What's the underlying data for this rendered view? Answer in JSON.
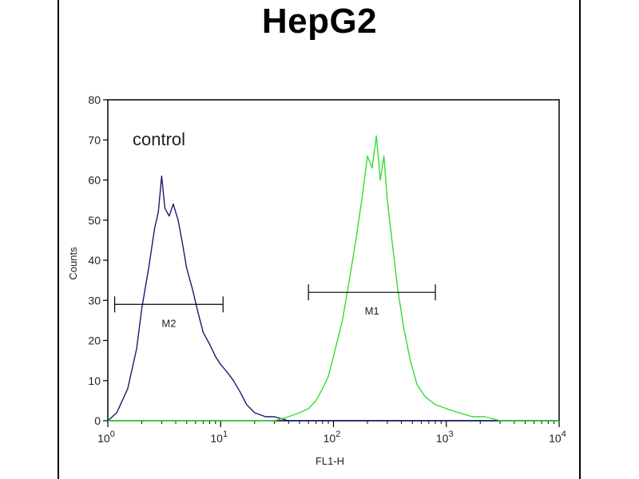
{
  "chart_data": {
    "type": "line",
    "title": "HepG2",
    "xlabel": "FL1-H",
    "ylabel": "Counts",
    "x_scale": "log",
    "xlim": [
      1,
      10000
    ],
    "ylim": [
      0,
      80
    ],
    "x_ticks": [
      {
        "value": 1,
        "base": "10",
        "exp": "0"
      },
      {
        "value": 10,
        "base": "10",
        "exp": "1"
      },
      {
        "value": 100,
        "base": "10",
        "exp": "2"
      },
      {
        "value": 1000,
        "base": "10",
        "exp": "3"
      },
      {
        "value": 10000,
        "base": "10",
        "exp": "4"
      }
    ],
    "y_ticks": [
      0,
      10,
      20,
      30,
      40,
      50,
      60,
      70,
      80
    ],
    "annotation": "control",
    "grid": false,
    "series": [
      {
        "color": "#1a1a6e",
        "x": [
          1.0,
          1.2,
          1.5,
          1.8,
          2.0,
          2.3,
          2.6,
          2.8,
          3.0,
          3.2,
          3.5,
          3.8,
          4.2,
          4.6,
          5.0,
          5.6,
          6.3,
          7.0,
          8.0,
          9.0,
          10.0,
          11.5,
          13.0,
          15.0,
          17.0,
          20.0,
          25.0,
          30.0,
          40.0,
          60.0,
          100.0,
          1000.0,
          10000.0
        ],
        "y": [
          0,
          2,
          8,
          18,
          28,
          38,
          48,
          52,
          61,
          53,
          51,
          54,
          50,
          44,
          38,
          33,
          27,
          22,
          19,
          16,
          14,
          12,
          10,
          7,
          4,
          2,
          1,
          1,
          0,
          0,
          0,
          0,
          0
        ]
      },
      {
        "color": "#33dd33",
        "x": [
          1.0,
          10.0,
          30.0,
          40.0,
          50.0,
          60.0,
          70.0,
          80.0,
          90.0,
          100.0,
          120.0,
          140.0,
          160.0,
          180.0,
          200.0,
          220.0,
          240.0,
          260.0,
          280.0,
          300.0,
          330.0,
          370.0,
          420.0,
          480.0,
          550.0,
          650.0,
          800.0,
          1000.0,
          1300.0,
          1700.0,
          2200.0,
          3000.0,
          5000.0,
          10000.0
        ],
        "y": [
          0,
          0,
          0,
          1,
          2,
          3,
          5,
          8,
          11,
          16,
          25,
          36,
          46,
          56,
          66,
          63,
          71,
          60,
          66,
          55,
          45,
          33,
          23,
          15,
          9,
          6,
          4,
          3,
          2,
          1,
          1,
          0,
          0,
          0
        ]
      }
    ],
    "markers": [
      {
        "label": "M2",
        "x_start": 1.15,
        "x_end": 10.5,
        "y": 29
      },
      {
        "label": "M1",
        "x_start": 60,
        "x_end": 800,
        "y": 32
      }
    ]
  }
}
